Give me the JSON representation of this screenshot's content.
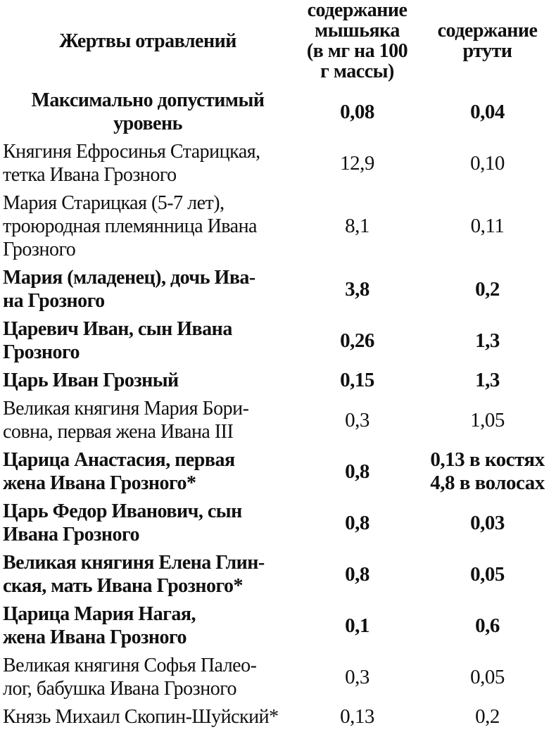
{
  "chart_data": {
    "type": "table",
    "title": "",
    "columns": [
      "Жертвы отравлений",
      "содержание\nмышьяка\n(в мг на 100\nг массы)",
      "содержание\nртути"
    ],
    "column_keys": [
      "victim",
      "arsenic_mg_per_100g",
      "mercury"
    ],
    "text_color": "#101010",
    "background_color": "#ffffff",
    "grid": "off",
    "rows": [
      {
        "name": "Максимально допустимый\nуровень",
        "arsenic": "0,08",
        "mercury": "0,04",
        "bold": true,
        "name_align": "center"
      },
      {
        "name": "Княгиня Ефросинья Старицкая,\nтетка Ивана Грозного",
        "arsenic": "12,9",
        "mercury": "0,10",
        "bold": false
      },
      {
        "name": "Мария Старицкая (5-7 лет),\nтроюродная племянница Ивана\nГрозного",
        "arsenic": "8,1",
        "mercury": "0,11",
        "bold": false
      },
      {
        "name": "Мария (младенец), дочь Ива-\nна Грозного",
        "arsenic": "3,8",
        "mercury": "0,2",
        "bold": true
      },
      {
        "name": "Царевич Иван, сын Ивана\nГрозного",
        "arsenic": "0,26",
        "mercury": "1,3",
        "bold": true
      },
      {
        "name": "Царь Иван Грозный",
        "arsenic": "0,15",
        "mercury": "1,3",
        "bold": true
      },
      {
        "name": "Великая княгиня Мария Бори-\nсовна, первая жена Ивана III",
        "arsenic": "0,3",
        "mercury": "1,05",
        "bold": false
      },
      {
        "name": "Царица Анастасия, первая\nжена Ивана Грозного*",
        "arsenic": "0,8",
        "mercury": "0,13 в костях\n4,8 в волосах",
        "bold": true
      },
      {
        "name": "Царь Федор Иванович, сын\nИвана Грозного",
        "arsenic": "0,8",
        "mercury": "0,03",
        "bold": true
      },
      {
        "name": "Великая княгиня Елена Глин-\nская, мать Ивана Грозного*",
        "arsenic": "0,8",
        "mercury": "0,05",
        "bold": true
      },
      {
        "name": "Царица Мария Нагая,\nжена Ивана Грозного",
        "arsenic": "0,1",
        "mercury": "0,6",
        "bold": true
      },
      {
        "name": "Великая княгиня Софья Палео-\nлог, бабушка Ивана Грозного",
        "arsenic": "0,3",
        "mercury": "0,05",
        "bold": false
      },
      {
        "name": "Князь Михаил Скопин-Шуйский*",
        "arsenic": "0,13",
        "mercury": "0,2",
        "bold": false
      }
    ]
  }
}
